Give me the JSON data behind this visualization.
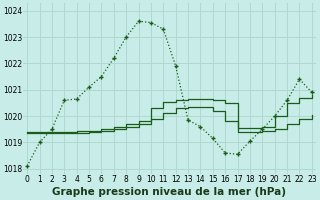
{
  "title": "Graphe pression niveau de la mer (hPa)",
  "bg_color": "#c8ece8",
  "grid_color": "#b0d8d0",
  "line_color": "#1a5c1a",
  "hours": [
    0,
    1,
    2,
    3,
    4,
    5,
    6,
    7,
    8,
    9,
    10,
    11,
    12,
    13,
    14,
    15,
    16,
    17,
    18,
    19,
    20,
    21,
    22,
    23
  ],
  "main_line": [
    1018.1,
    1019.0,
    1019.5,
    1020.6,
    1020.65,
    1021.1,
    1021.5,
    1022.2,
    1023.0,
    1023.6,
    1023.55,
    1023.3,
    1021.9,
    1019.85,
    1019.6,
    1019.15,
    1018.6,
    1018.55,
    1019.05,
    1019.5,
    1020.0,
    1020.6,
    1021.4,
    1020.9
  ],
  "step_line1": [
    1019.4,
    1019.4,
    1019.4,
    1019.4,
    1019.45,
    1019.45,
    1019.5,
    1019.6,
    1019.7,
    1019.8,
    1020.3,
    1020.55,
    1020.6,
    1020.65,
    1020.65,
    1020.6,
    1020.5,
    1019.55,
    1019.55,
    1019.6,
    1020.0,
    1020.5,
    1020.7,
    1020.8
  ],
  "step_line2": [
    1019.35,
    1019.35,
    1019.35,
    1019.35,
    1019.35,
    1019.4,
    1019.45,
    1019.5,
    1019.6,
    1019.7,
    1019.9,
    1020.1,
    1020.3,
    1020.35,
    1020.35,
    1020.2,
    1019.8,
    1019.4,
    1019.4,
    1019.45,
    1019.5,
    1019.7,
    1019.9,
    1020.05
  ],
  "ylim": [
    1017.8,
    1024.3
  ],
  "yticks": [
    1018,
    1019,
    1020,
    1021,
    1022,
    1023,
    1024
  ],
  "title_fontsize": 7.5,
  "tick_fontsize": 5.5
}
